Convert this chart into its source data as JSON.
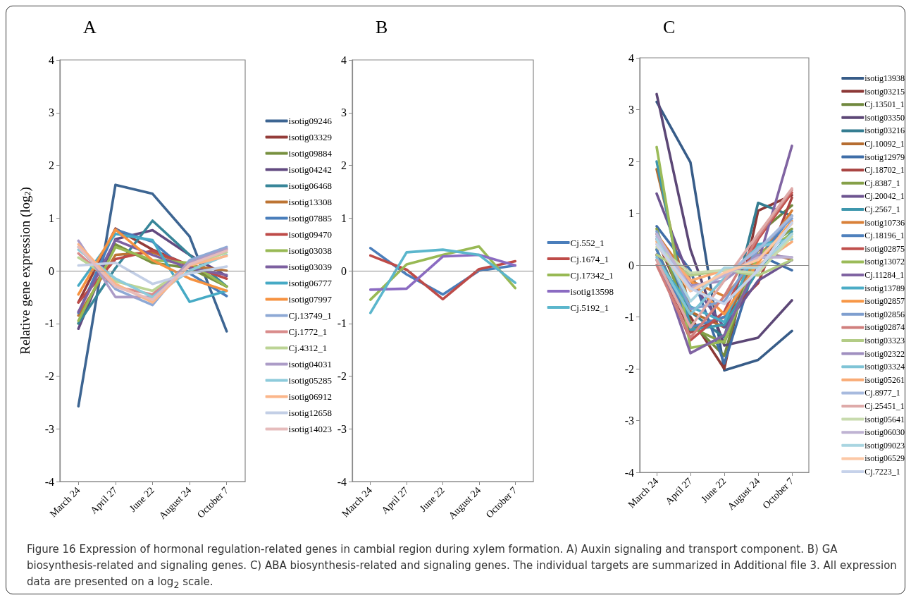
{
  "chart_data": [
    {
      "type": "line",
      "title": "A",
      "ylabel": "Relative gene expression (log$_{2}$)",
      "categories": [
        "March 24",
        "April 27",
        "June 22",
        "August 24",
        "October 7"
      ],
      "ylim": [
        -4,
        4
      ],
      "yticks": [
        -4,
        -3,
        -2,
        -1,
        0,
        1,
        2,
        3,
        4
      ],
      "grid": false,
      "legend": "right",
      "marker": "none",
      "line_style": "solid",
      "ref_lines": [
        {
          "axis": "y",
          "value": 0
        }
      ],
      "annotations": [
        "Figure 16 Expression of hormonal regulation-related genes in cambial region during xylem formation. A) Auxin signaling and transport component. B) GA biosynthesis-related and signaling genes. C) ABA biosynthesis-related and signaling genes. The individual targets are summarized in Additional file 3. All expression data are presented on a log$_{2}$ scale."
      ],
      "series": [
        {
          "name": "isotig09246",
          "color": "#3d6592",
          "values": [
            -2.57,
            1.63,
            1.46,
            0.65,
            -1.15
          ]
        },
        {
          "name": "isotig03329",
          "color": "#943c39",
          "values": [
            -0.6,
            0.8,
            0.4,
            0.1,
            -0.3
          ]
        },
        {
          "name": "isotig09884",
          "color": "#77903f",
          "values": [
            -1.0,
            0.5,
            0.15,
            0.05,
            -0.3
          ]
        },
        {
          "name": "isotig04242",
          "color": "#624a80",
          "values": [
            -1.1,
            0.6,
            0.77,
            0.3,
            -0.1
          ]
        },
        {
          "name": "isotig06468",
          "color": "#388699",
          "values": [
            -1.0,
            0.05,
            0.95,
            0.3,
            -0.3
          ]
        },
        {
          "name": "isotig13308",
          "color": "#bd7433",
          "values": [
            -0.85,
            0.3,
            0.35,
            0.1,
            0.0
          ]
        },
        {
          "name": "isotig07885",
          "color": "#4a7ebb",
          "values": [
            -0.8,
            0.78,
            0.55,
            -0.05,
            -0.48
          ]
        },
        {
          "name": "isotig09470",
          "color": "#be4b48",
          "values": [
            -0.6,
            0.22,
            0.38,
            0.1,
            -0.15
          ]
        },
        {
          "name": "isotig03038",
          "color": "#98b954",
          "values": [
            -0.95,
            0.45,
            0.2,
            0.15,
            -0.3
          ]
        },
        {
          "name": "isotig03039",
          "color": "#7d60a0",
          "values": [
            -0.78,
            0.58,
            0.3,
            0.05,
            -0.08
          ]
        },
        {
          "name": "isotig06777",
          "color": "#46aac5",
          "values": [
            -0.28,
            0.7,
            0.58,
            -0.59,
            -0.38
          ]
        },
        {
          "name": "isotig07997",
          "color": "#f69240",
          "values": [
            -0.45,
            0.78,
            0.2,
            -0.15,
            -0.38
          ]
        },
        {
          "name": "Cj.13749_1",
          "color": "#8ea9d5",
          "values": [
            0.45,
            -0.35,
            -0.65,
            0.2,
            0.45
          ]
        },
        {
          "name": "Cj.1772_1",
          "color": "#d98c8b",
          "values": [
            0.33,
            -0.3,
            -0.45,
            0.15,
            0.4
          ]
        },
        {
          "name": "Cj.4312_1",
          "color": "#bcd495",
          "values": [
            0.25,
            -0.2,
            -0.38,
            0.1,
            0.35
          ]
        },
        {
          "name": "isotig04031",
          "color": "#ac9cc7",
          "values": [
            0.57,
            -0.5,
            -0.5,
            0.15,
            0.42
          ]
        },
        {
          "name": "isotig05285",
          "color": "#8dcbdb",
          "values": [
            0.4,
            -0.15,
            -0.5,
            0.0,
            0.3
          ]
        },
        {
          "name": "isotig06912",
          "color": "#fbb68a",
          "values": [
            0.5,
            -0.25,
            -0.6,
            0.1,
            0.28
          ]
        },
        {
          "name": "isotig12658",
          "color": "#c3cfe6",
          "values": [
            0.1,
            0.15,
            -0.25,
            -0.05,
            0.08
          ]
        },
        {
          "name": "isotig14023",
          "color": "#e6bcbc",
          "values": [
            0.45,
            -0.3,
            -0.55,
            0.12,
            0.38
          ]
        }
      ]
    },
    {
      "type": "line",
      "title": "B",
      "categories": [
        "March 24",
        "April 27",
        "June 22",
        "August 24",
        "October 7"
      ],
      "ylim": [
        -4,
        4
      ],
      "yticks": [
        -4,
        -3,
        -2,
        -1,
        0,
        1,
        2,
        3,
        4
      ],
      "grid": false,
      "legend": "right",
      "marker": "none",
      "line_style": "solid",
      "ref_lines": [
        {
          "axis": "y",
          "value": 0
        }
      ],
      "series": [
        {
          "name": "Cj.552_1",
          "color": "#4a7ebb",
          "values": [
            0.43,
            -0.07,
            -0.45,
            0.0,
            0.1
          ]
        },
        {
          "name": "Cj.1674_1",
          "color": "#be4b48",
          "values": [
            0.29,
            0.02,
            -0.54,
            0.03,
            0.18
          ]
        },
        {
          "name": "Cj.17342_1",
          "color": "#98b954",
          "values": [
            -0.55,
            0.12,
            0.3,
            0.46,
            -0.33
          ]
        },
        {
          "name": "isotig13598",
          "color": "#8b6bc2",
          "values": [
            -0.36,
            -0.34,
            0.27,
            0.3,
            0.1
          ]
        },
        {
          "name": "Cj.5192_1",
          "color": "#5bb6cc",
          "values": [
            -0.8,
            0.35,
            0.4,
            0.3,
            -0.23
          ]
        }
      ]
    },
    {
      "type": "line",
      "title": "C",
      "categories": [
        "March 24",
        "April 27",
        "June 22",
        "August 24",
        "October 7"
      ],
      "ylim": [
        -4,
        4
      ],
      "yticks": [
        -4,
        -3,
        -2,
        -1,
        0,
        1,
        2,
        3,
        4
      ],
      "grid": false,
      "legend": "right",
      "marker": "none",
      "line_style": "solid",
      "ref_lines": [
        {
          "axis": "y",
          "value": 0
        }
      ],
      "series": [
        {
          "name": "isotig13938",
          "color": "#375c88",
          "values": [
            3.15,
            1.98,
            -2.03,
            -1.83,
            -1.27
          ]
        },
        {
          "name": "isotig03215",
          "color": "#8c3836",
          "values": [
            0.5,
            -1.0,
            -2.0,
            1.05,
            1.35
          ]
        },
        {
          "name": "Cj.13501_1",
          "color": "#71893f",
          "values": [
            0.3,
            -1.1,
            -1.75,
            0.6,
            1.15
          ]
        },
        {
          "name": "isotig03350",
          "color": "#5c4776",
          "values": [
            3.3,
            0.3,
            -1.55,
            -1.4,
            -0.68
          ]
        },
        {
          "name": "isotig03216",
          "color": "#357d91",
          "values": [
            0.6,
            -0.9,
            -1.4,
            1.2,
            0.95
          ]
        },
        {
          "name": "Cj.10092_1",
          "color": "#b66d31",
          "values": [
            1.85,
            -0.9,
            -1.2,
            0.3,
            0.1
          ]
        },
        {
          "name": "isotig12979",
          "color": "#3f6ea8",
          "values": [
            0.75,
            -0.1,
            -1.9,
            0.2,
            -0.1
          ]
        },
        {
          "name": "Cj.18702_1",
          "color": "#a94442",
          "values": [
            0.2,
            -1.3,
            -1.0,
            -0.35,
            1.3
          ]
        },
        {
          "name": "Cj.8387_1",
          "color": "#85a048",
          "values": [
            0.7,
            -1.2,
            -1.5,
            0.2,
            0.7
          ]
        },
        {
          "name": "Cj.20042_1",
          "color": "#6d5490",
          "values": [
            1.38,
            -0.3,
            -1.2,
            -0.3,
            0.1
          ]
        },
        {
          "name": "Cj.2567_1",
          "color": "#3e97ad",
          "values": [
            2.0,
            -1.25,
            -1.15,
            -0.1,
            0.65
          ]
        },
        {
          "name": "isotig10736",
          "color": "#d98038",
          "values": [
            0.6,
            -0.3,
            -0.6,
            0.1,
            1.05
          ]
        },
        {
          "name": "Cj.18196_1",
          "color": "#4f81bd",
          "values": [
            0.3,
            -1.2,
            -1.0,
            0.1,
            0.95
          ]
        },
        {
          "name": "isotig02875",
          "color": "#c0504d",
          "values": [
            0.1,
            -1.45,
            -0.9,
            0.5,
            1.4
          ]
        },
        {
          "name": "isotig13072",
          "color": "#9bbb59",
          "values": [
            2.28,
            -1.6,
            -1.47,
            0.2,
            0.6
          ]
        },
        {
          "name": "Cj.11284_1",
          "color": "#8064a2",
          "values": [
            0.2,
            -1.7,
            -1.35,
            0.05,
            2.3
          ]
        },
        {
          "name": "isotig13789",
          "color": "#4bacc6",
          "values": [
            0.1,
            -0.8,
            -1.1,
            0.4,
            0.5
          ]
        },
        {
          "name": "isotig02857",
          "color": "#f79646",
          "values": [
            0.4,
            -0.3,
            -0.95,
            0.05,
            0.85
          ]
        },
        {
          "name": "isotig02856",
          "color": "#7f9fcf",
          "values": [
            0.65,
            -0.85,
            -0.7,
            0.3,
            0.9
          ]
        },
        {
          "name": "isotig02874",
          "color": "#d07f7d",
          "values": [
            0.0,
            -1.4,
            -0.6,
            0.55,
            1.45
          ]
        },
        {
          "name": "isotig03323",
          "color": "#b3cc86",
          "values": [
            0.2,
            -0.2,
            -0.1,
            -0.2,
            0.1
          ]
        },
        {
          "name": "isotig02322",
          "color": "#a08fc0",
          "values": [
            0.5,
            -0.4,
            -0.3,
            0.2,
            0.15
          ]
        },
        {
          "name": "isotig03324",
          "color": "#7fc4d6",
          "values": [
            0.15,
            -0.95,
            -0.25,
            0.35,
            0.5
          ]
        },
        {
          "name": "isotig05261",
          "color": "#f9ab76",
          "values": [
            0.45,
            -0.3,
            -0.1,
            0.0,
            0.45
          ]
        },
        {
          "name": "Cj.8977_1",
          "color": "#a7bade",
          "values": [
            0.55,
            -0.5,
            -0.2,
            0.3,
            0.95
          ]
        },
        {
          "name": "Cj.25451_1",
          "color": "#deaaa9",
          "values": [
            0.1,
            -1.2,
            -0.3,
            0.6,
            1.48
          ]
        },
        {
          "name": "isotig05641",
          "color": "#c8dbae",
          "values": [
            0.35,
            -0.15,
            -0.1,
            -0.15,
            0.55
          ]
        },
        {
          "name": "isotig06030",
          "color": "#bfb3d3",
          "values": [
            0.6,
            -0.45,
            -0.2,
            0.15,
            0.15
          ]
        },
        {
          "name": "isotig09023",
          "color": "#a9d5e1",
          "values": [
            0.5,
            -0.7,
            -0.05,
            -0.05,
            0.6
          ]
        },
        {
          "name": "isotig06529",
          "color": "#fcc8a6",
          "values": [
            0.4,
            -0.5,
            -0.15,
            0.1,
            0.8
          ]
        },
        {
          "name": "Cj.7223_1",
          "color": "#c6d2ea",
          "values": [
            0.4,
            -0.45,
            -0.75,
            -0.1,
            0.82
          ]
        }
      ]
    }
  ]
}
